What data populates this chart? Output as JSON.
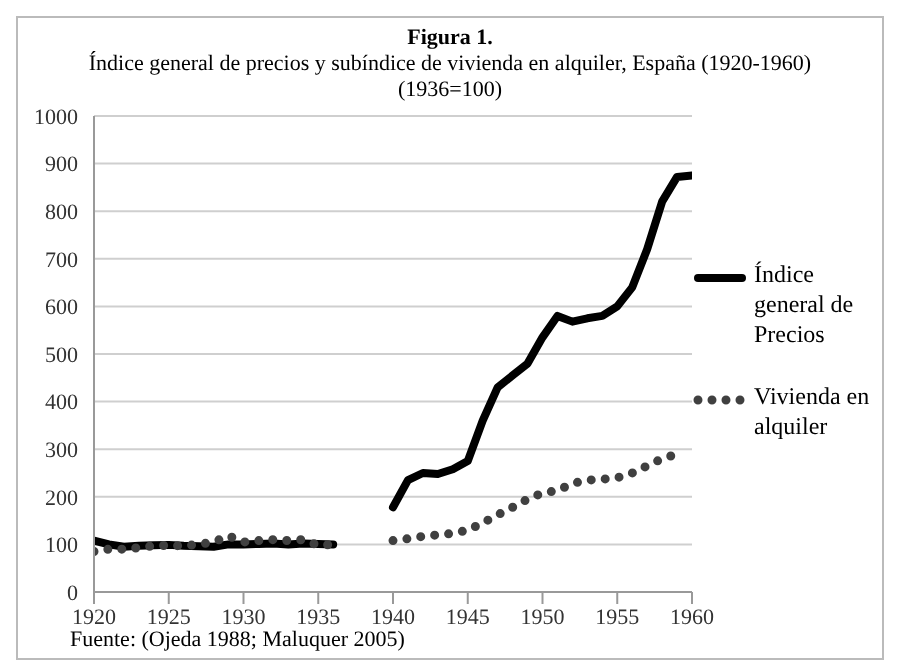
{
  "chart_data": {
    "type": "line",
    "title": "Figura 1.",
    "subtitle": "Índice general de precios y subíndice de vivienda en alquiler, España (1920-1960)\n(1936=100)",
    "x": [
      1920,
      1921,
      1922,
      1923,
      1924,
      1925,
      1926,
      1927,
      1928,
      1929,
      1930,
      1931,
      1932,
      1933,
      1934,
      1935,
      1936,
      1937,
      1938,
      1939,
      1940,
      1941,
      1942,
      1943,
      1944,
      1945,
      1946,
      1947,
      1948,
      1949,
      1950,
      1951,
      1952,
      1953,
      1954,
      1955,
      1956,
      1957,
      1958,
      1959,
      1960
    ],
    "series": [
      {
        "name": "Índice general de Precios",
        "color": "#000000",
        "line_style": "solid",
        "values": [
          108,
          100,
          95,
          97,
          98,
          99,
          97,
          96,
          95,
          100,
          100,
          101,
          102,
          100,
          102,
          101,
          100,
          null,
          null,
          null,
          178,
          235,
          250,
          248,
          258,
          275,
          360,
          430,
          455,
          480,
          535,
          580,
          568,
          575,
          580,
          600,
          640,
          720,
          820,
          872,
          875
        ]
      },
      {
        "name": "Vivienda en alquiler",
        "color": "#404040",
        "line_style": "dotted",
        "values": [
          85,
          90,
          90,
          93,
          97,
          98,
          97,
          100,
          105,
          118,
          105,
          108,
          110,
          108,
          110,
          98,
          100,
          null,
          null,
          null,
          108,
          112,
          117,
          120,
          123,
          130,
          145,
          162,
          178,
          195,
          208,
          213,
          228,
          235,
          237,
          240,
          250,
          265,
          280,
          290,
          null
        ]
      }
    ],
    "xlim": [
      1920,
      1960
    ],
    "xticks": [
      1920,
      1925,
      1930,
      1935,
      1940,
      1945,
      1950,
      1955,
      1960
    ],
    "ylim": [
      0,
      1000
    ],
    "yticks": [
      0,
      100,
      200,
      300,
      400,
      500,
      600,
      700,
      800,
      900,
      1000
    ],
    "grid": "y",
    "legend": "right",
    "annotations": [
      "Fuente: (Ojeda 1988; Maluquer 2005)"
    ]
  }
}
